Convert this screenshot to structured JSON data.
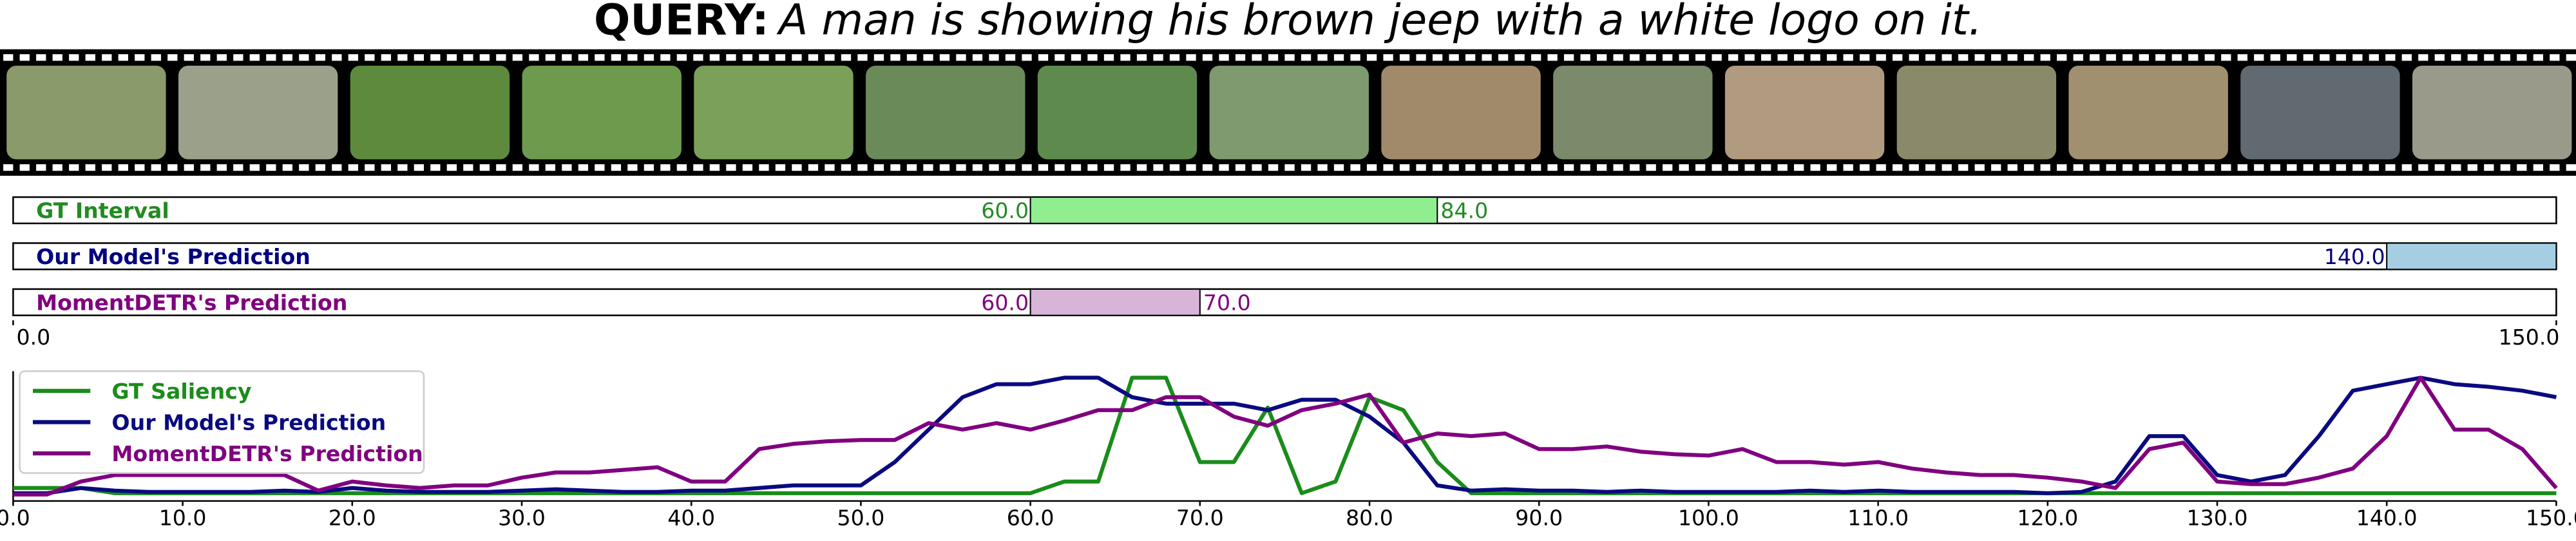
{
  "query": {
    "label": "QUERY:",
    "text": "A man is showing his brown jeep with a white logo on it."
  },
  "chart_data": [
    {
      "type": "interval",
      "xlim": [
        0,
        150
      ],
      "xticks": [
        {
          "value": 0,
          "label": "0.0"
        },
        {
          "value": 150,
          "label": "150.0"
        }
      ],
      "rows": [
        {
          "name": "GT Interval",
          "color": "#90ee90",
          "text_color": "#228b22",
          "start": {
            "value": 60,
            "label": "60.0"
          },
          "end": {
            "value": 84,
            "label": "84.0"
          }
        },
        {
          "name": "Our Model's Prediction",
          "color": "#a6cee3",
          "text_color": "#000080",
          "start": {
            "value": 140,
            "label": "140.0"
          },
          "end": 150
        },
        {
          "name": "MomentDETR's Prediction",
          "color": "#d8b4d8",
          "text_color": "#800080",
          "start": {
            "value": 60,
            "label": "60.0"
          },
          "end": {
            "value": 70,
            "label": "70.0"
          }
        }
      ]
    },
    {
      "type": "line",
      "xlim": [
        0,
        150
      ],
      "ylim": [
        0,
        1
      ],
      "xticks": [
        {
          "value": 0,
          "label": "0.0"
        },
        {
          "value": 10,
          "label": "10.0"
        },
        {
          "value": 20,
          "label": "20.0"
        },
        {
          "value": 30,
          "label": "30.0"
        },
        {
          "value": 40,
          "label": "40.0"
        },
        {
          "value": 50,
          "label": "50.0"
        },
        {
          "value": 60,
          "label": "60.0"
        },
        {
          "value": 70,
          "label": "70.0"
        },
        {
          "value": 80,
          "label": "80.0"
        },
        {
          "value": 90,
          "label": "90.0"
        },
        {
          "value": 100,
          "label": "100.0"
        },
        {
          "value": 110,
          "label": "110.0"
        },
        {
          "value": 120,
          "label": "120.0"
        },
        {
          "value": 130,
          "label": "130.0"
        },
        {
          "value": 140,
          "label": "140.0"
        },
        {
          "value": 150,
          "label": "150.0"
        }
      ],
      "legend": "upper left",
      "x": [
        0,
        2,
        4,
        6,
        8,
        10,
        12,
        14,
        16,
        18,
        20,
        22,
        24,
        26,
        28,
        30,
        32,
        34,
        36,
        38,
        40,
        42,
        44,
        46,
        48,
        50,
        52,
        54,
        56,
        58,
        60,
        62,
        64,
        66,
        68,
        70,
        72,
        74,
        76,
        78,
        80,
        82,
        84,
        86,
        88,
        90,
        92,
        94,
        96,
        98,
        100,
        102,
        104,
        106,
        108,
        110,
        112,
        114,
        116,
        118,
        120,
        122,
        124,
        126,
        128,
        130,
        132,
        134,
        136,
        138,
        140,
        142,
        144,
        146,
        148,
        150
      ],
      "series": [
        {
          "name": "GT Saliency",
          "color": "#1a8c1a",
          "values": [
            0.1,
            0.1,
            0.1,
            0.06,
            0.06,
            0.06,
            0.06,
            0.06,
            0.06,
            0.06,
            0.06,
            0.06,
            0.06,
            0.06,
            0.06,
            0.06,
            0.06,
            0.06,
            0.06,
            0.06,
            0.06,
            0.06,
            0.06,
            0.06,
            0.06,
            0.06,
            0.06,
            0.06,
            0.06,
            0.06,
            0.06,
            0.15,
            0.15,
            0.95,
            0.95,
            0.3,
            0.3,
            0.72,
            0.06,
            0.15,
            0.8,
            0.7,
            0.3,
            0.06,
            0.06,
            0.06,
            0.06,
            0.06,
            0.06,
            0.06,
            0.06,
            0.06,
            0.06,
            0.06,
            0.06,
            0.06,
            0.06,
            0.06,
            0.06,
            0.06,
            0.06,
            0.06,
            0.06,
            0.06,
            0.06,
            0.06,
            0.06,
            0.06,
            0.06,
            0.06,
            0.06,
            0.06,
            0.06,
            0.06,
            0.06,
            0.06
          ]
        },
        {
          "name": "Our Model's Prediction",
          "color": "#0a0a80",
          "values": [
            0.06,
            0.06,
            0.1,
            0.08,
            0.07,
            0.07,
            0.07,
            0.07,
            0.08,
            0.07,
            0.1,
            0.08,
            0.07,
            0.07,
            0.07,
            0.08,
            0.09,
            0.08,
            0.07,
            0.07,
            0.08,
            0.08,
            0.1,
            0.12,
            0.12,
            0.12,
            0.3,
            0.55,
            0.8,
            0.9,
            0.9,
            0.95,
            0.95,
            0.8,
            0.75,
            0.75,
            0.75,
            0.7,
            0.78,
            0.78,
            0.65,
            0.45,
            0.12,
            0.08,
            0.09,
            0.08,
            0.08,
            0.07,
            0.08,
            0.07,
            0.07,
            0.07,
            0.07,
            0.08,
            0.07,
            0.08,
            0.07,
            0.07,
            0.07,
            0.07,
            0.06,
            0.07,
            0.15,
            0.5,
            0.5,
            0.2,
            0.15,
            0.2,
            0.5,
            0.85,
            0.9,
            0.95,
            0.9,
            0.88,
            0.85,
            0.8
          ]
        },
        {
          "name": "MomentDETR's Prediction",
          "color": "#800080",
          "values": [
            0.05,
            0.05,
            0.15,
            0.2,
            0.2,
            0.2,
            0.2,
            0.2,
            0.2,
            0.08,
            0.15,
            0.12,
            0.1,
            0.12,
            0.12,
            0.18,
            0.22,
            0.22,
            0.24,
            0.26,
            0.15,
            0.15,
            0.4,
            0.44,
            0.46,
            0.47,
            0.47,
            0.6,
            0.55,
            0.6,
            0.55,
            0.62,
            0.7,
            0.7,
            0.8,
            0.8,
            0.65,
            0.58,
            0.7,
            0.75,
            0.82,
            0.45,
            0.52,
            0.5,
            0.52,
            0.4,
            0.4,
            0.42,
            0.38,
            0.36,
            0.35,
            0.4,
            0.3,
            0.3,
            0.28,
            0.3,
            0.25,
            0.22,
            0.2,
            0.2,
            0.18,
            0.15,
            0.1,
            0.4,
            0.45,
            0.15,
            0.13,
            0.13,
            0.18,
            0.25,
            0.5,
            0.95,
            0.55,
            0.55,
            0.4,
            0.1
          ]
        }
      ]
    }
  ]
}
